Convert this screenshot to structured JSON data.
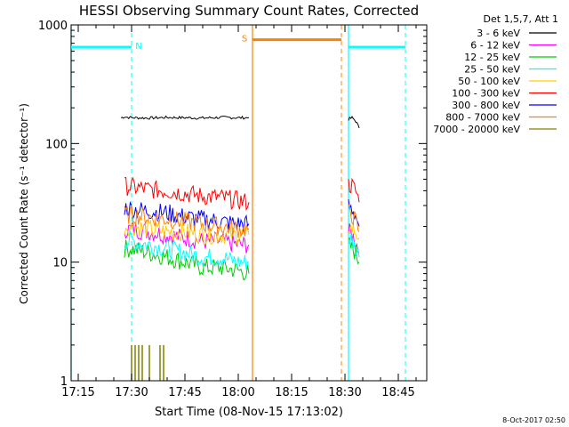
{
  "chart_data": {
    "type": "line",
    "title": "HESSI Observing Summary Count Rates, Corrected",
    "xlabel": "Start Time (08-Nov-15 17:13:02)",
    "ylabel": "Corrected Count Rate (s⁻¹ detector⁻¹)",
    "y_scale": "log",
    "ylim": [
      1,
      1000
    ],
    "xlim": [
      "17:13",
      "18:53"
    ],
    "y_ticks": [
      {
        "value": 1,
        "label": "1"
      },
      {
        "value": 10,
        "label": "10"
      },
      {
        "value": 100,
        "label": "100"
      },
      {
        "value": 1000,
        "label": "1000"
      }
    ],
    "x_ticks": [
      "17:15",
      "17:30",
      "17:45",
      "18:00",
      "18:15",
      "18:30",
      "18:45"
    ],
    "legend_title": "Det 1,5,7, Att 1",
    "legend_placement": "right",
    "series": [
      {
        "name": "3 - 6 keV",
        "color": "#000000",
        "segments": [
          {
            "t": [
              "17:27",
              "17:28",
              "17:30",
              "17:35",
              "17:40",
              "17:45",
              "17:50",
              "17:55",
              "18:00",
              "18:03"
            ],
            "v": [
              165,
              168,
              165,
              164,
              166,
              165,
              164,
              166,
              165,
              165
            ]
          },
          {
            "t": [
              "18:31",
              "18:32",
              "18:33",
              "18:34"
            ],
            "v": [
              160,
              165,
              155,
              135
            ]
          }
        ]
      },
      {
        "name": "6 - 12 keV",
        "color": "#ff00ff",
        "segments": [
          {
            "t": [
              "17:28",
              "17:30",
              "17:35",
              "17:40",
              "17:45",
              "17:50",
              "17:55",
              "18:00",
              "18:03"
            ],
            "v": [
              19,
              19,
              18,
              17,
              16,
              15,
              15,
              14,
              14
            ]
          },
          {
            "t": [
              "18:31",
              "18:32",
              "18:33",
              "18:34"
            ],
            "v": [
              18,
              17,
              15,
              12
            ]
          }
        ]
      },
      {
        "name": "12 - 25 keV",
        "color": "#00cc00",
        "segments": [
          {
            "t": [
              "17:28",
              "17:30",
              "17:35",
              "17:40",
              "17:45",
              "17:50",
              "17:55",
              "18:00",
              "18:03"
            ],
            "v": [
              13,
              13,
              12,
              11,
              10,
              9,
              9,
              8.5,
              8
            ]
          },
          {
            "t": [
              "18:31",
              "18:32",
              "18:33",
              "18:34"
            ],
            "v": [
              14,
              13,
              12,
              10
            ]
          }
        ]
      },
      {
        "name": "25 - 50 keV",
        "color": "#00ffff",
        "segments": [
          {
            "t": [
              "17:28",
              "17:30",
              "17:35",
              "17:40",
              "17:45",
              "17:50",
              "17:55",
              "18:00",
              "18:03"
            ],
            "v": [
              15,
              15,
              14,
              13,
              12,
              11,
              11,
              10,
              10
            ]
          },
          {
            "t": [
              "18:31",
              "18:32",
              "18:33",
              "18:34"
            ],
            "v": [
              16,
              15,
              13,
              11
            ]
          }
        ]
      },
      {
        "name": "50 - 100 keV",
        "color": "#ffcc00",
        "segments": [
          {
            "t": [
              "17:28",
              "17:30",
              "17:35",
              "17:40",
              "17:45",
              "17:50",
              "17:55",
              "18:00",
              "18:03"
            ],
            "v": [
              20,
              20,
              19,
              18,
              18,
              17,
              17,
              17,
              17
            ]
          },
          {
            "t": [
              "18:31",
              "18:32",
              "18:33",
              "18:34"
            ],
            "v": [
              20,
              19,
              18,
              16
            ]
          }
        ]
      },
      {
        "name": "100 - 300 keV",
        "color": "#ff0000",
        "segments": [
          {
            "t": [
              "17:28",
              "17:30",
              "17:35",
              "17:40",
              "17:45",
              "17:50",
              "17:55",
              "18:00",
              "18:03"
            ],
            "v": [
              44,
              43,
              41,
              40,
              38,
              36,
              35,
              33,
              32
            ]
          },
          {
            "t": [
              "18:31",
              "18:32",
              "18:33",
              "18:34"
            ],
            "v": [
              45,
              44,
              40,
              32
            ]
          }
        ]
      },
      {
        "name": "300 - 800 keV",
        "color": "#0000ff",
        "segments": [
          {
            "t": [
              "17:28",
              "17:30",
              "17:35",
              "17:40",
              "17:45",
              "17:50",
              "17:55",
              "18:00",
              "18:03"
            ],
            "v": [
              29,
              28,
              27,
              26,
              24,
              23,
              22,
              21,
              21
            ]
          },
          {
            "t": [
              "18:31",
              "18:32",
              "18:33",
              "18:34"
            ],
            "v": [
              30,
              28,
              25,
              20
            ]
          }
        ]
      },
      {
        "name": "800 - 7000 keV",
        "color": "#ff8000",
        "segments": [
          {
            "t": [
              "17:28",
              "17:30",
              "17:35",
              "17:40",
              "17:45",
              "17:50",
              "17:55",
              "18:00",
              "18:03"
            ],
            "v": [
              25,
              25,
              24,
              23,
              22,
              21,
              20,
              19,
              19
            ]
          },
          {
            "t": [
              "18:31",
              "18:32",
              "18:33",
              "18:34"
            ],
            "v": [
              26,
              25,
              22,
              18
            ]
          }
        ]
      },
      {
        "name": "7000 - 20000 keV",
        "color": "#808000",
        "bursts": [
          {
            "t": "17:30",
            "v": 2
          },
          {
            "t": "17:31",
            "v": 2
          },
          {
            "t": "17:32",
            "v": 2
          },
          {
            "t": "17:33",
            "v": 2
          },
          {
            "t": "17:35",
            "v": 2
          },
          {
            "t": "17:38",
            "v": 2
          },
          {
            "t": "17:39",
            "v": 2
          }
        ]
      }
    ],
    "annotations": [
      {
        "label": "N",
        "type": "night",
        "color": "#00ffff",
        "start": "17:13",
        "end": "17:30",
        "level": 650
      },
      {
        "label": "",
        "type": "night",
        "color": "#00ffff",
        "start": "18:31",
        "end": "18:47",
        "level": 650
      },
      {
        "label": "S",
        "type": "saa",
        "color": "#ff8000",
        "start": "18:04",
        "end": "18:29",
        "level": 750
      }
    ],
    "vlines_solid": [
      {
        "t": "17:13",
        "color": "#00ffff"
      },
      {
        "t": "18:04",
        "color": "#ff8000"
      },
      {
        "t": "18:31",
        "color": "#00ffff"
      }
    ],
    "vlines_dashed": [
      {
        "t": "17:30",
        "color": "#00ffff"
      },
      {
        "t": "18:29",
        "color": "#ff8000"
      },
      {
        "t": "18:47",
        "color": "#00ffff"
      }
    ]
  },
  "footer": {
    "timestamp": "8-Oct-2017 02:50"
  }
}
